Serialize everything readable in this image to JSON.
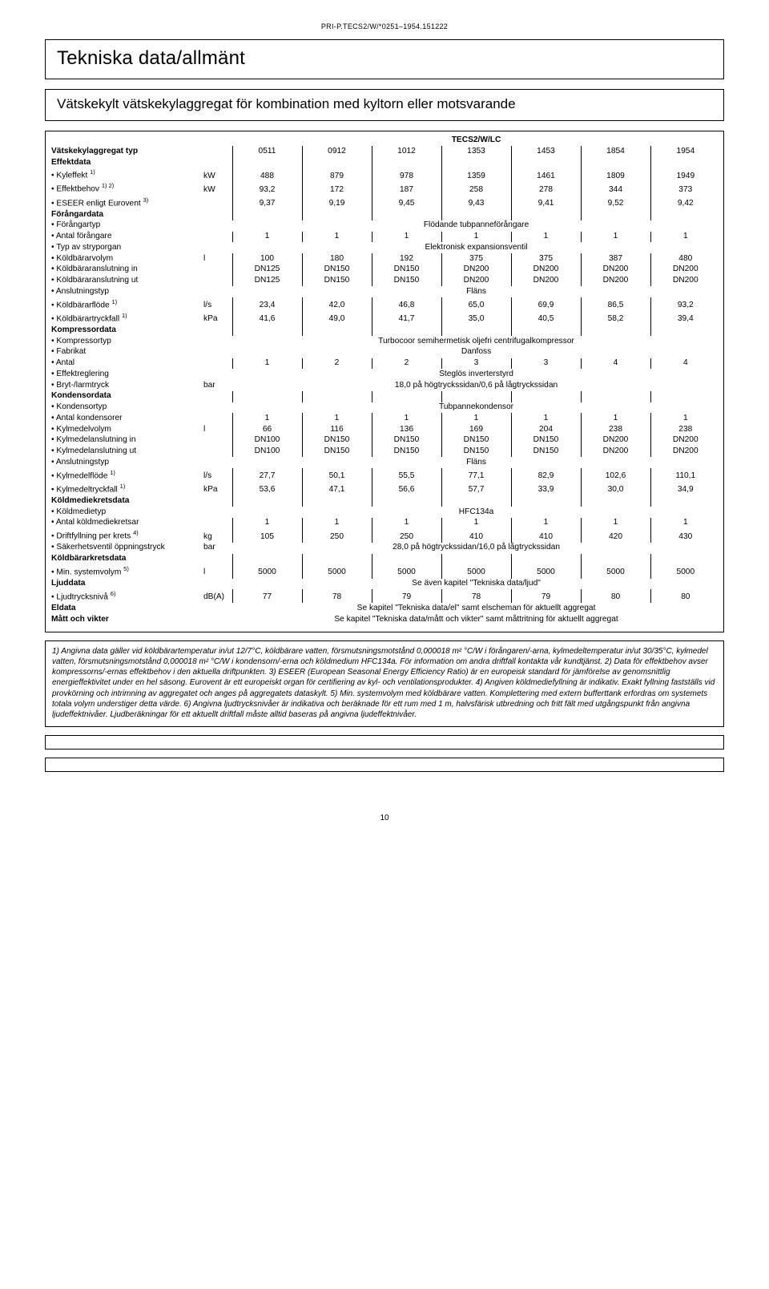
{
  "doc_id": "PRI-P.TECS2/W/*0251–1954.151222",
  "title": "Tekniska data/allmänt",
  "subtitle": "Vätskekylt vätskekylaggregat för kombination med kyltorn eller motsvarande",
  "series_title": "TECS2/W/LC",
  "typ_label": "Vätskekylaggregat typ",
  "models": [
    "0511",
    "0912",
    "1012",
    "1353",
    "1453",
    "1854",
    "1954"
  ],
  "sections": [
    {
      "heading": "Effektdata",
      "rows": [
        {
          "label": "Kyleffekt",
          "sup": "1)",
          "unit": "kW",
          "vals": [
            "488",
            "879",
            "978",
            "1359",
            "1461",
            "1809",
            "1949"
          ]
        },
        {
          "label": "Effektbehov",
          "sup": "1) 2)",
          "unit": "kW",
          "vals": [
            "93,2",
            "172",
            "187",
            "258",
            "278",
            "344",
            "373"
          ]
        },
        {
          "label": "ESEER enligt Eurovent",
          "sup": "3)",
          "unit": "",
          "vals": [
            "9,37",
            "9,19",
            "9,45",
            "9,43",
            "9,41",
            "9,52",
            "9,42"
          ]
        }
      ]
    },
    {
      "heading": "Förångardata",
      "rows": [
        {
          "label": "Förångartyp",
          "unit": "",
          "span": "Flödande tubpanneförångare"
        },
        {
          "label": "Antal förångare",
          "unit": "",
          "vals": [
            "1",
            "1",
            "1",
            "1",
            "1",
            "1",
            "1"
          ]
        },
        {
          "label": "Typ av stryporgan",
          "unit": "",
          "span": "Elektronisk expansionsventil"
        },
        {
          "label": "Köldbärarvolym",
          "unit": "l",
          "vals": [
            "100",
            "180",
            "192",
            "375",
            "375",
            "387",
            "480"
          ]
        },
        {
          "label": "Köldbäraranslutning in",
          "unit": "",
          "vals": [
            "DN125",
            "DN150",
            "DN150",
            "DN200",
            "DN200",
            "DN200",
            "DN200"
          ]
        },
        {
          "label": "Köldbäraranslutning ut",
          "unit": "",
          "vals": [
            "DN125",
            "DN150",
            "DN150",
            "DN200",
            "DN200",
            "DN200",
            "DN200"
          ]
        },
        {
          "label": "Anslutningstyp",
          "unit": "",
          "span": "Fläns"
        },
        {
          "label": "Köldbärarflöde",
          "sup": "1)",
          "unit": "l/s",
          "vals": [
            "23,4",
            "42,0",
            "46,8",
            "65,0",
            "69,9",
            "86,5",
            "93,2"
          ]
        },
        {
          "label": "Köldbärartryckfall",
          "sup": "1)",
          "unit": "kPa",
          "vals": [
            "41,6",
            "49,0",
            "41,7",
            "35,0",
            "40,5",
            "58,2",
            "39,4"
          ]
        }
      ]
    },
    {
      "heading": "Kompressordata",
      "rows": [
        {
          "label": "Kompressortyp",
          "unit": "",
          "span": "Turbocoor semihermetisk oljefri centrifugalkompressor"
        },
        {
          "label": "Fabrikat",
          "unit": "",
          "span": "Danfoss"
        },
        {
          "label": "Antal",
          "unit": "",
          "vals": [
            "1",
            "2",
            "2",
            "3",
            "3",
            "4",
            "4"
          ]
        },
        {
          "label": "Effektreglering",
          "unit": "",
          "span": "Steglös inverterstyrd"
        },
        {
          "label": "Bryt-/larmtryck",
          "unit": "bar",
          "span": "18,0 på högtryckssidan/0,6 på lågtryckssidan"
        }
      ]
    },
    {
      "heading": "Kondensordata",
      "rows": [
        {
          "label": "Kondensortyp",
          "unit": "",
          "span": "Tubpannekondensor"
        },
        {
          "label": "Antal kondensorer",
          "unit": "",
          "vals": [
            "1",
            "1",
            "1",
            "1",
            "1",
            "1",
            "1"
          ]
        },
        {
          "label": "Kylmedelvolym",
          "unit": "l",
          "vals": [
            "66",
            "116",
            "136",
            "169",
            "204",
            "238",
            "238"
          ]
        },
        {
          "label": "Kylmedelanslutning in",
          "unit": "",
          "vals": [
            "DN100",
            "DN150",
            "DN150",
            "DN150",
            "DN150",
            "DN200",
            "DN200"
          ]
        },
        {
          "label": "Kylmedelanslutning ut",
          "unit": "",
          "vals": [
            "DN100",
            "DN150",
            "DN150",
            "DN150",
            "DN150",
            "DN200",
            "DN200"
          ]
        },
        {
          "label": "Anslutningstyp",
          "unit": "",
          "span": "Fläns"
        },
        {
          "label": "Kylmedelflöde",
          "sup": "1)",
          "unit": "l/s",
          "vals": [
            "27,7",
            "50,1",
            "55,5",
            "77,1",
            "82,9",
            "102,6",
            "110,1"
          ]
        },
        {
          "label": "Kylmedeltryckfall",
          "sup": "1)",
          "unit": "kPa",
          "vals": [
            "53,6",
            "47,1",
            "56,6",
            "57,7",
            "33,9",
            "30,0",
            "34,9"
          ]
        }
      ]
    },
    {
      "heading": "Köldmediekretsdata",
      "rows": [
        {
          "label": "Köldmedietyp",
          "unit": "",
          "span": "HFC134a"
        },
        {
          "label": "Antal köldmediekretsar",
          "unit": "",
          "vals": [
            "1",
            "1",
            "1",
            "1",
            "1",
            "1",
            "1"
          ]
        },
        {
          "label": "Driftfyllning per krets",
          "sup": "4)",
          "unit": "kg",
          "vals": [
            "105",
            "250",
            "250",
            "410",
            "410",
            "420",
            "430"
          ]
        },
        {
          "label": "Säkerhetsventil öppningstryck",
          "unit": "bar",
          "span": "28,0 på högtryckssidan/16,0 på lågtryckssidan"
        }
      ]
    },
    {
      "heading": "Köldbärarkretsdata",
      "rows": [
        {
          "label": "Min. systemvolym",
          "sup": "5)",
          "unit": "l",
          "vals": [
            "5000",
            "5000",
            "5000",
            "5000",
            "5000",
            "5000",
            "5000"
          ]
        }
      ]
    },
    {
      "heading": "Ljuddata",
      "headspan": "Se även kapitel \"Tekniska data/ljud\"",
      "rows": [
        {
          "label": "Ljudtrycksnivå",
          "sup": "6)",
          "unit": "dB(A)",
          "vals": [
            "77",
            "78",
            "79",
            "78",
            "79",
            "80",
            "80"
          ]
        }
      ]
    },
    {
      "heading": "Eldata",
      "headspan": "Se kapitel \"Tekniska data/el\" samt elscheman för aktuellt aggregat",
      "rows": []
    },
    {
      "heading": "Mått och vikter",
      "headspan": "Se kapitel \"Tekniska data/mått och vikter\" samt måttritning för aktuellt aggregat",
      "rows": []
    }
  ],
  "footnotes": "1) Angivna data gäller vid köldbärartemperatur in/ut 12/7°C, köldbärare vatten, försmutsningsmotstånd 0,000018 m² °C/W i förångaren/-arna, kylmedeltemperatur in/ut 30/35°C, kylmedel vatten, försmutsningsmotstånd 0,000018 m² °C/W i kondensorn/-erna och köldmedium HFC134a. För information om andra driftfall kontakta vår kundtjänst. 2) Data för effektbehov avser kompressorns/-ernas effektbehov i den aktuella driftpunkten. 3) ESEER (European Seasonal Energy Efficiency Ratio) är en europeisk standard för jämförelse av genomsnittlig energieffektivitet under en hel säsong. Eurovent är ett europeiskt organ för certifiering av kyl- och ventilationsprodukter. 4) Angiven köldmediefyllning är indikativ. Exakt fyllning fastställs vid provkörning och intrimning av aggregatet och anges på aggregatets dataskylt. 5) Min. systemvolym med köldbärare vatten. Komplettering med extern bufferttank erfordras om systemets totala volym understiger detta värde. 6) Angivna ljudtrycksnivåer är indikativa och beräknade för ett rum med 1 m, halvsfärisk utbredning och fritt fält med utgångspunkt från angivna ljudeffektnivåer. Ljudberäkningar för ett aktuellt driftfall måste alltid baseras på angivna ljudeffektnivåer.",
  "page_number": "10"
}
